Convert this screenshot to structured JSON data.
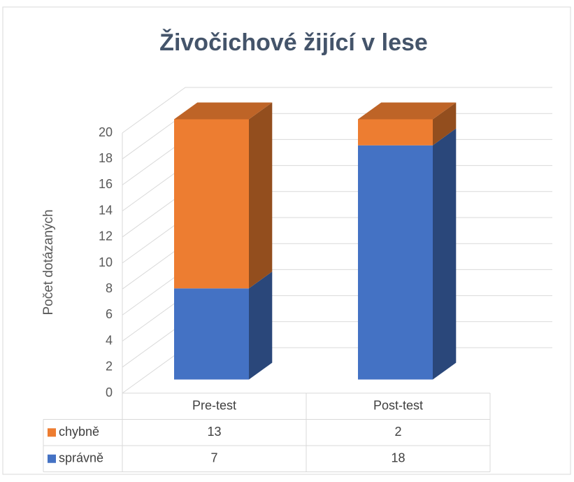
{
  "chart_data": {
    "type": "bar3d_stacked",
    "title": "Živočichové žijící v lese",
    "y_label": "Počet dotázaných",
    "categories": [
      "Pre-test",
      "Post-test"
    ],
    "series": [
      {
        "name": "správně",
        "color": "#4472c4",
        "values": [
          7,
          18
        ]
      },
      {
        "name": "chybně",
        "color": "#ed7d31",
        "values": [
          13,
          2
        ]
      }
    ],
    "ylim": [
      0,
      20
    ],
    "yticks": [
      0,
      2,
      4,
      6,
      8,
      10,
      12,
      14,
      16,
      18,
      20
    ],
    "grid": true,
    "data_table": true
  }
}
